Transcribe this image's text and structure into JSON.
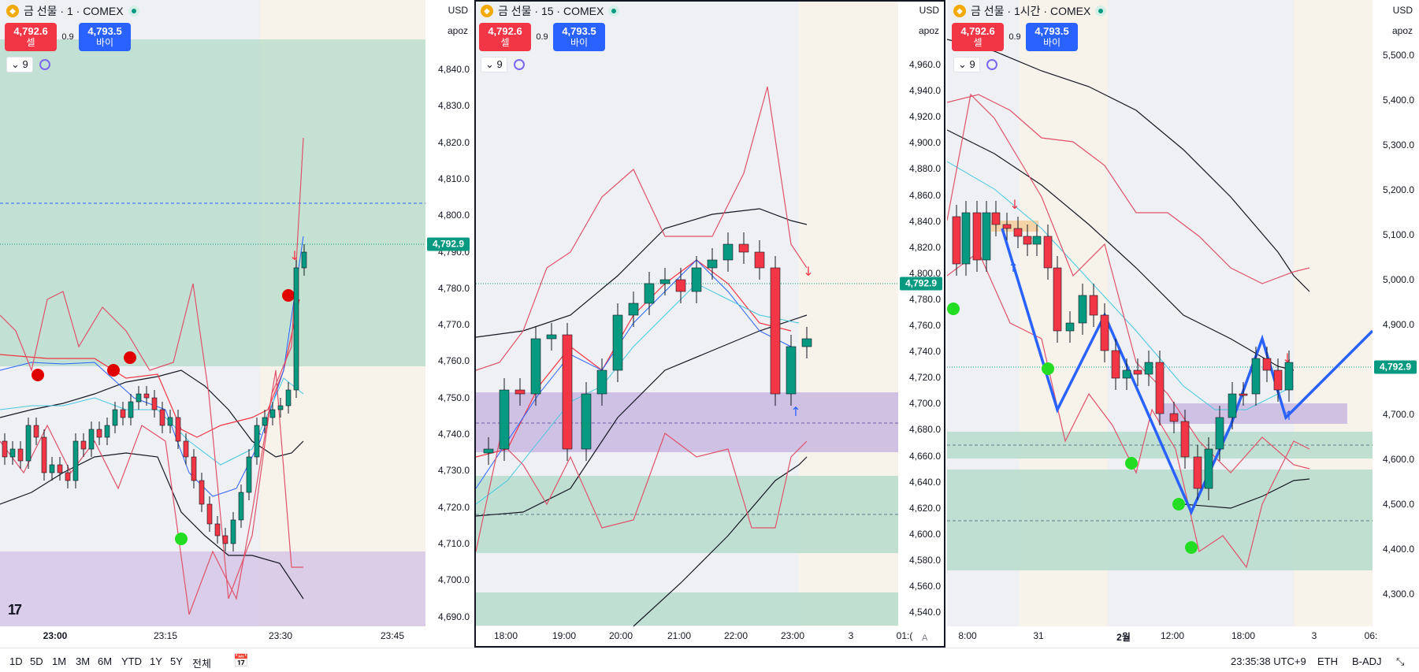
{
  "charts": [
    {
      "title": "금 선물 · 1 · COMEX",
      "currency": "USD",
      "scale": "apoz",
      "sell_price": "4,792.6",
      "sell_label": "셀",
      "spread": "0.9",
      "buy_price": "4,793.5",
      "buy_label": "바이",
      "indicator_count": "9",
      "last_price_tag": "4,792.9",
      "y_ticks": [
        "4,840.0",
        "4,830.0",
        "4,820.0",
        "4,810.0",
        "4,800.0",
        "4,790.0",
        "4,780.0",
        "4,770.0",
        "4,760.0",
        "4,750.0",
        "4,740.0",
        "4,730.0",
        "4,720.0",
        "4,710.0",
        "4,700.0",
        "4,690.0"
      ],
      "x_ticks": [
        {
          "label": "23:00",
          "bold": true
        },
        {
          "label": "23:15",
          "bold": false
        },
        {
          "label": "23:30",
          "bold": false
        },
        {
          "label": "23:45",
          "bold": false
        }
      ]
    },
    {
      "title": "금 선물 · 15 · COMEX",
      "currency": "USD",
      "scale": "apoz",
      "sell_price": "4,792.6",
      "sell_label": "셀",
      "spread": "0.9",
      "buy_price": "4,793.5",
      "buy_label": "바이",
      "indicator_count": "9",
      "last_price_tag": "4,792.9",
      "y_ticks": [
        "4,960.0",
        "4,940.0",
        "4,920.0",
        "4,900.0",
        "4,880.0",
        "4,860.0",
        "4,840.0",
        "4,820.0",
        "4,800.0",
        "4,780.0",
        "4,760.0",
        "4,740.0",
        "4,720.0",
        "4,700.0",
        "4,680.0",
        "4,660.0",
        "4,640.0",
        "4,620.0",
        "4,600.0",
        "4,580.0",
        "4,560.0",
        "4,540.0"
      ],
      "x_ticks": [
        {
          "label": "18:00",
          "bold": false
        },
        {
          "label": "19:00",
          "bold": false
        },
        {
          "label": "20:00",
          "bold": false
        },
        {
          "label": "21:00",
          "bold": false
        },
        {
          "label": "22:00",
          "bold": false
        },
        {
          "label": "23:00",
          "bold": false
        },
        {
          "label": "3",
          "bold": false
        },
        {
          "label": "01:(",
          "bold": false
        }
      ],
      "auto_label": "A"
    },
    {
      "title": "금 선물 · 1시간 · COMEX",
      "currency": "USD",
      "scale": "apoz",
      "sell_price": "4,792.6",
      "sell_label": "셀",
      "spread": "0.9",
      "buy_price": "4,793.5",
      "buy_label": "바이",
      "indicator_count": "9",
      "last_price_tag": "4,792.9",
      "y_ticks": [
        "5,500.0",
        "5,400.0",
        "5,300.0",
        "5,200.0",
        "5,100.0",
        "5,000.0",
        "4,900.0",
        "4,800.0",
        "4,700.0",
        "4,600.0",
        "4,500.0",
        "4,400.0",
        "4,300.0"
      ],
      "x_ticks": [
        {
          "label": "8:00",
          "bold": false
        },
        {
          "label": "31",
          "bold": false
        },
        {
          "label": "2월",
          "bold": true
        },
        {
          "label": "12:00",
          "bold": false
        },
        {
          "label": "18:00",
          "bold": false
        },
        {
          "label": "3",
          "bold": false
        },
        {
          "label": "06:",
          "bold": false
        }
      ]
    }
  ],
  "bottom_bar": {
    "ranges": [
      "1D",
      "5D",
      "1M",
      "3M",
      "6M",
      "YTD",
      "1Y",
      "5Y",
      "전체"
    ],
    "clock": "23:35:38 UTC+9",
    "session": "ETH",
    "adjust": "B-ADJ"
  },
  "logo": "17",
  "colors": {
    "up": "#089981",
    "down": "#f23645",
    "zone_green": "#a8d8c8",
    "zone_purple": "#c9b8e0",
    "pattern": "#2962ff"
  }
}
